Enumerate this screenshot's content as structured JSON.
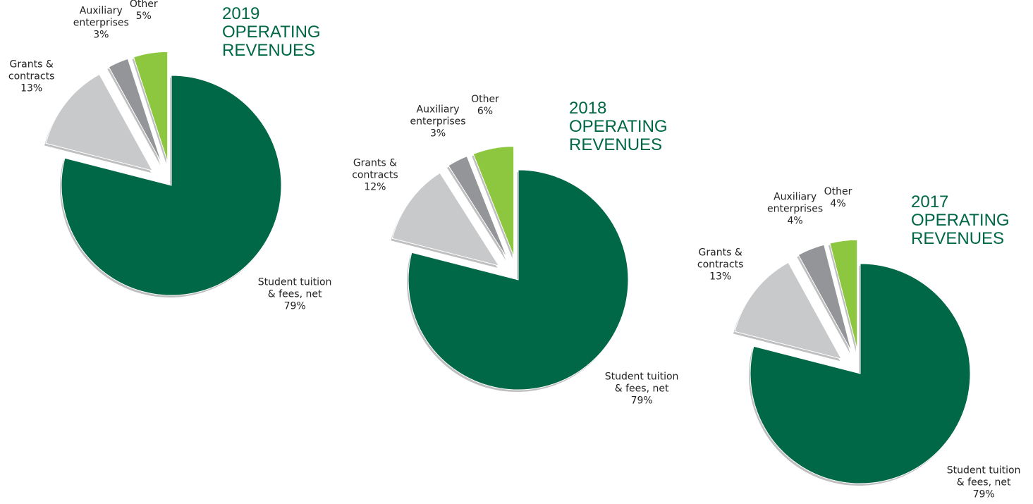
{
  "chart_data": [
    {
      "type": "pie",
      "title": "2019 OPERATING REVENUES",
      "categories": [
        "Student tuition & fees, net",
        "Grants & contracts",
        "Auxiliary enterprises",
        "Other"
      ],
      "values": [
        79,
        13,
        3,
        5
      ],
      "value_labels": [
        "79%",
        "13%",
        "3%",
        "5%"
      ],
      "colors": [
        "#006747",
        "#c8c9cb",
        "#939598",
        "#8dc63f"
      ]
    },
    {
      "type": "pie",
      "title": "2018 OPERATING REVENUES",
      "categories": [
        "Student tuition & fees, net",
        "Grants & contracts",
        "Auxiliary enterprises",
        "Other"
      ],
      "values": [
        79,
        12,
        3,
        6
      ],
      "value_labels": [
        "79%",
        "12%",
        "3%",
        "6%"
      ],
      "colors": [
        "#006747",
        "#c8c9cb",
        "#939598",
        "#8dc63f"
      ]
    },
    {
      "type": "pie",
      "title": "2017 OPERATING REVENUES",
      "categories": [
        "Student tuition & fees, net",
        "Grants & contracts",
        "Auxiliary enterprises",
        "Other"
      ],
      "values": [
        79,
        13,
        4,
        4
      ],
      "value_labels": [
        "79%",
        "13%",
        "4%",
        "4%"
      ],
      "colors": [
        "#006747",
        "#c8c9cb",
        "#939598",
        "#8dc63f"
      ]
    }
  ]
}
